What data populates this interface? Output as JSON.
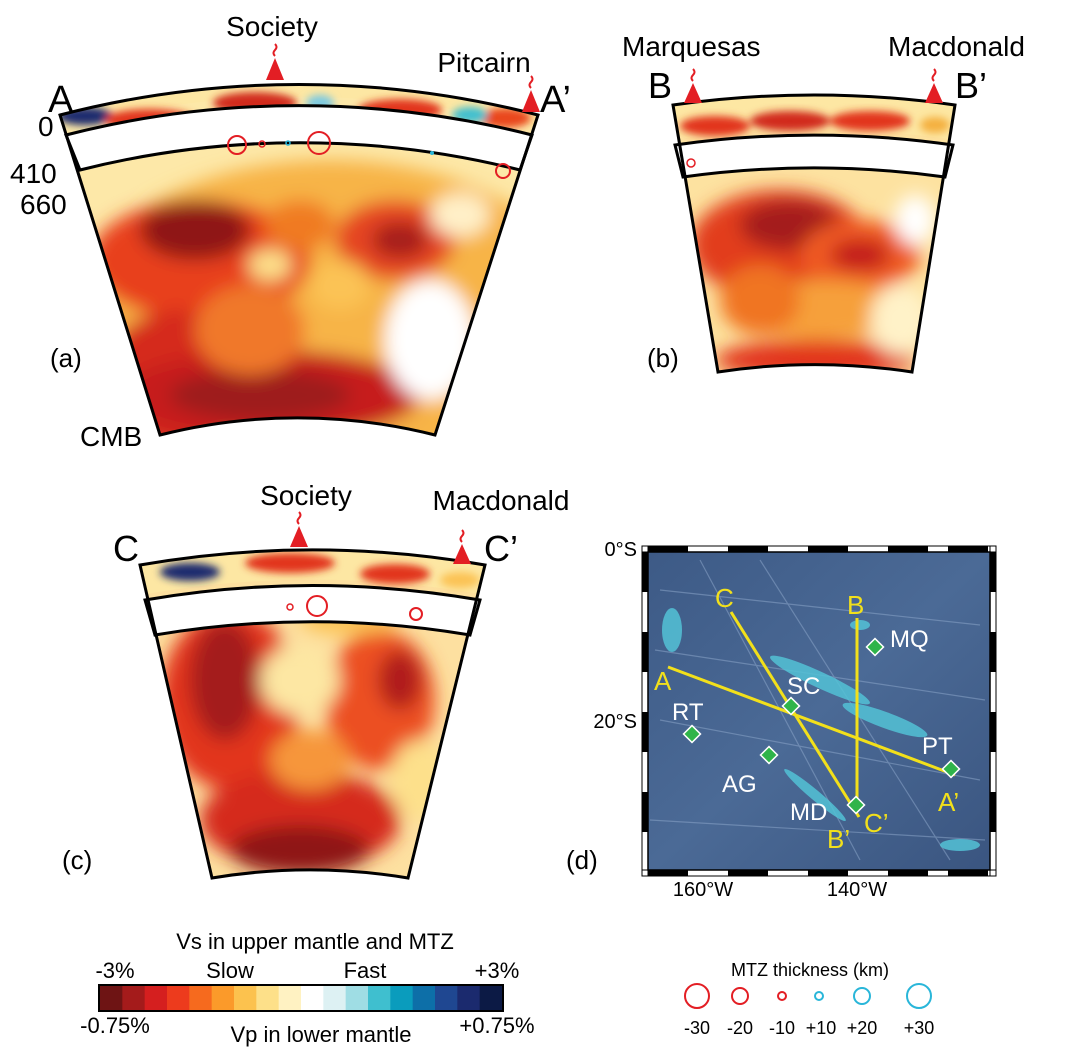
{
  "panels": {
    "a": {
      "label": "(a)",
      "start_label": "A",
      "end_label": "A’",
      "hotspots": [
        "Society",
        "Pitcairn"
      ],
      "depth_labels": [
        "0",
        "410",
        "660"
      ],
      "bottom_label": "CMB"
    },
    "b": {
      "label": "(b)",
      "start_label": "B",
      "end_label": "B’",
      "hotspots": [
        "Marquesas",
        "Macdonald"
      ]
    },
    "c": {
      "label": "(c)",
      "start_label": "C",
      "end_label": "C’",
      "hotspots": [
        "Society",
        "Macdonald"
      ]
    },
    "d": {
      "label": "(d)",
      "lat_labels": [
        "0°S",
        "20°S"
      ],
      "lon_labels": [
        "160°W",
        "140°W"
      ],
      "profile_labels": [
        "A",
        "A’",
        "B",
        "B’",
        "C",
        "C’"
      ],
      "sites": [
        {
          "code": "MQ"
        },
        {
          "code": "SC"
        },
        {
          "code": "RT"
        },
        {
          "code": "AG"
        },
        {
          "code": "PT"
        },
        {
          "code": "MD"
        }
      ]
    }
  },
  "velocity_legend": {
    "title": "Vs in upper mantle and MTZ",
    "upper_min": "-3%",
    "upper_max": "+3%",
    "slow_label": "Slow",
    "fast_label": "Fast",
    "lower_min": "-0.75%",
    "lower_max": "+0.75%",
    "lower_title": "Vp in lower mantle",
    "colors": [
      "#6e1414",
      "#a41b1b",
      "#d51f1f",
      "#ed3b1d",
      "#f66a1e",
      "#fb9a2a",
      "#fcc24e",
      "#fde089",
      "#fff2c2",
      "#ffffff",
      "#ddf1f3",
      "#9fdde4",
      "#3fbfcf",
      "#0a9cbd",
      "#0d6fa8",
      "#1f4791",
      "#1b2a6e",
      "#0c1a45"
    ]
  },
  "mtz_legend": {
    "title": "MTZ thickness (km)",
    "items": [
      {
        "label": "-30",
        "color": "#e31e24"
      },
      {
        "label": "-20",
        "color": "#e31e24"
      },
      {
        "label": "-10",
        "color": "#e31e24"
      },
      {
        "label": "+10",
        "color": "#29b6d9"
      },
      {
        "label": "+20",
        "color": "#29b6d9"
      },
      {
        "label": "+30",
        "color": "#29b6d9"
      }
    ]
  }
}
